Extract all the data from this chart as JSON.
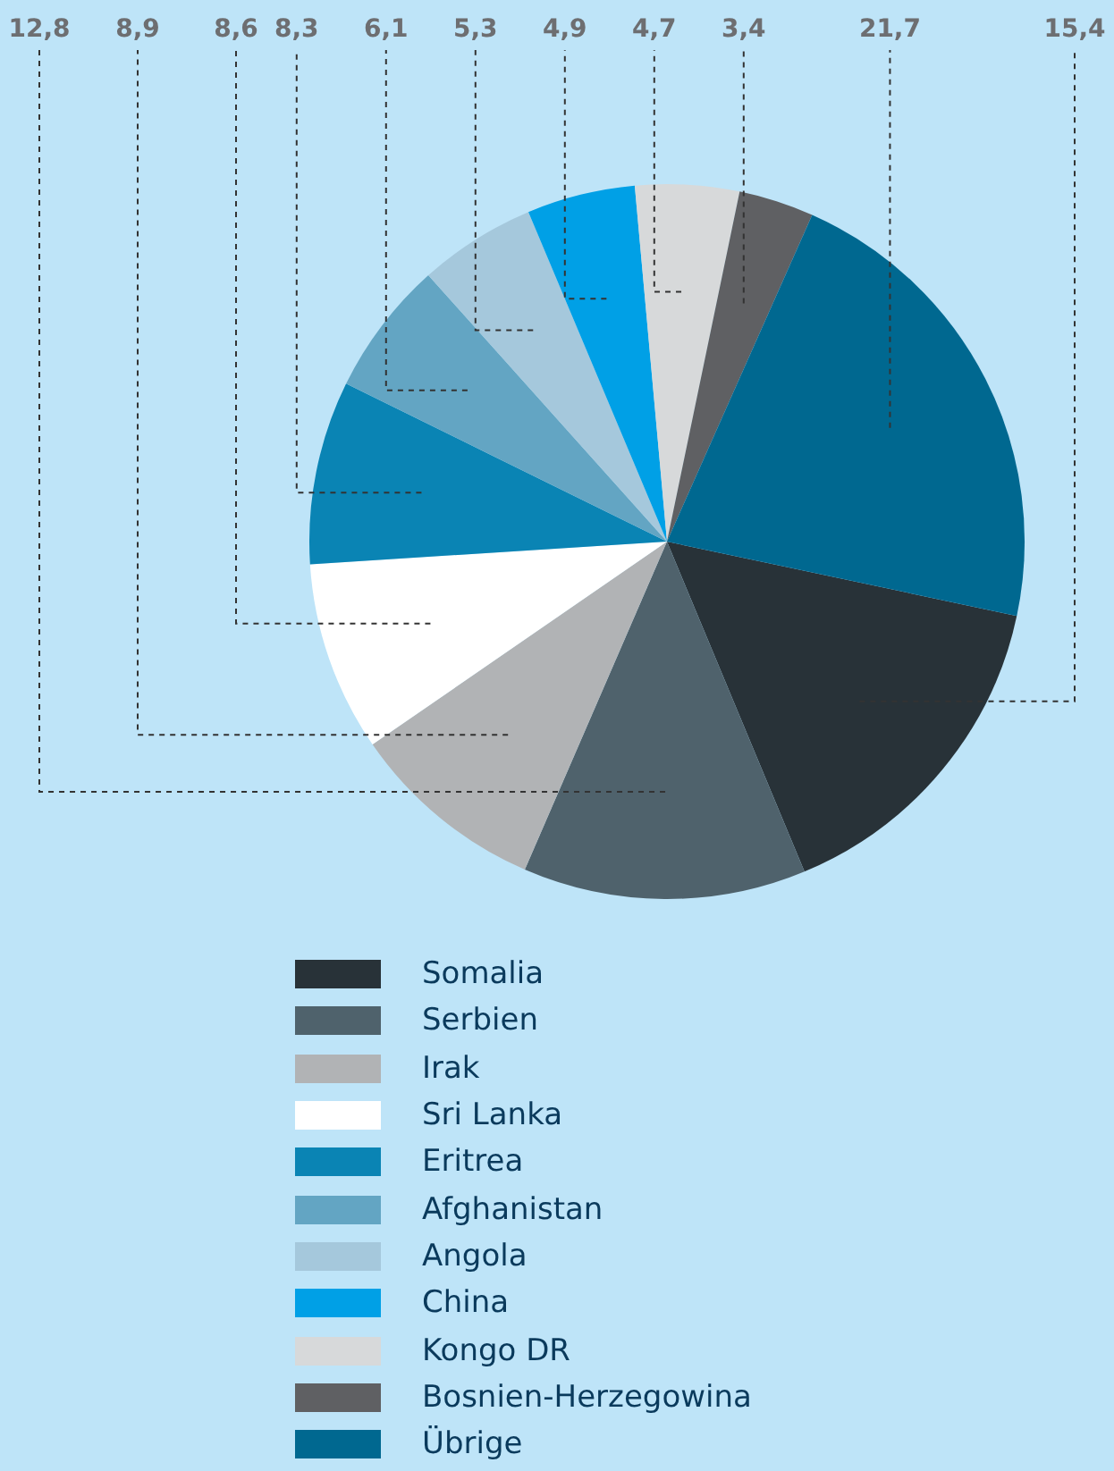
{
  "chart_data": {
    "type": "pie",
    "categories": [
      "Somalia",
      "Serbien",
      "Irak",
      "Sri Lanka",
      "Eritrea",
      "Afghanistan",
      "Angola",
      "China",
      "Kongo DR",
      "Bosnien-Herzegowina",
      "Übrige"
    ],
    "values": [
      15.4,
      12.8,
      8.9,
      8.6,
      8.3,
      6.1,
      5.3,
      4.9,
      4.7,
      3.4,
      21.7
    ],
    "colors": [
      "#283238",
      "#4f626c",
      "#b1b3b5",
      "#ffffff",
      "#0a84b4",
      "#63a5c3",
      "#a5c8dc",
      "#00a0e6",
      "#d7d9da",
      "#5f6063",
      "#006890"
    ],
    "value_labels": [
      "15,4",
      "12,8",
      "8,9",
      "8,6",
      "8,3",
      "6,1",
      "5,3",
      "4,9",
      "4,7",
      "3,4",
      "21,7"
    ],
    "legend": "bottom"
  }
}
